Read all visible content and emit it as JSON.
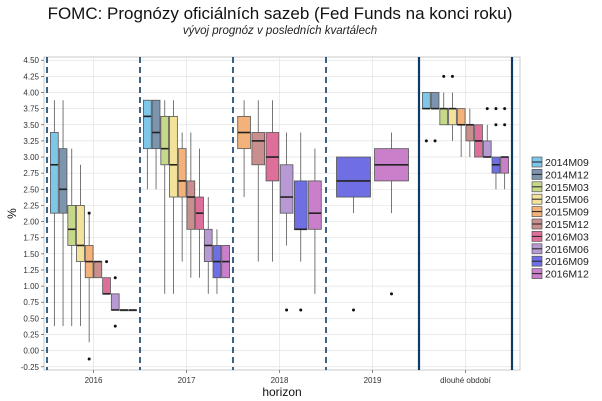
{
  "chart_data": {
    "type": "box",
    "title": "FOMC: Prognózy oficiálních sazeb (Fed Funds na konci roku)",
    "subtitle": "vývoj prognóz v posledních kvartálech",
    "xlabel": "horizon",
    "ylabel": "%",
    "ylim": [
      -0.3,
      4.55
    ],
    "yticks": [
      "-0.25",
      "0.00",
      "0.25",
      "0.50",
      "0.75",
      "1.00",
      "1.25",
      "1.50",
      "1.75",
      "2.00",
      "2.25",
      "2.50",
      "2.75",
      "3.00",
      "3.25",
      "3.50",
      "3.75",
      "4.00",
      "4.25",
      "4.50"
    ],
    "categories": [
      "2016",
      "2017",
      "2018",
      "2019",
      "dlouhé období"
    ],
    "series": [
      {
        "name": "2014M09",
        "color": "#7fc7e8"
      },
      {
        "name": "2014M12",
        "color": "#7d94ae"
      },
      {
        "name": "2015M03",
        "color": "#c6d98b"
      },
      {
        "name": "2015M06",
        "color": "#f3e39a"
      },
      {
        "name": "2015M09",
        "color": "#f3b27a"
      },
      {
        "name": "2015M12",
        "color": "#c98f8f"
      },
      {
        "name": "2016M03",
        "color": "#de6f9a"
      },
      {
        "name": "2016M06",
        "color": "#b79ad3"
      },
      {
        "name": "2016M09",
        "color": "#6f6fe3"
      },
      {
        "name": "2016M12",
        "color": "#c97fc9"
      }
    ],
    "boxes": [
      {
        "category": "2016",
        "series": "2014M09",
        "min": 0.38,
        "q1": 2.13,
        "median": 2.88,
        "q3": 3.38,
        "max": 3.88,
        "outliers": []
      },
      {
        "category": "2016",
        "series": "2014M12",
        "min": 0.38,
        "q1": 2.13,
        "median": 2.5,
        "q3": 3.13,
        "max": 3.88,
        "outliers": []
      },
      {
        "category": "2016",
        "series": "2015M03",
        "min": 0.38,
        "q1": 1.63,
        "median": 1.88,
        "q3": 2.25,
        "max": 3.13,
        "outliers": []
      },
      {
        "category": "2016",
        "series": "2015M06",
        "min": 0.38,
        "q1": 1.38,
        "median": 1.63,
        "q3": 2.25,
        "max": 2.88,
        "outliers": []
      },
      {
        "category": "2016",
        "series": "2015M09",
        "min": 0.13,
        "q1": 1.13,
        "median": 1.38,
        "q3": 1.63,
        "max": 2.13,
        "outliers": [
          -0.13,
          2.13
        ]
      },
      {
        "category": "2016",
        "series": "2015M12",
        "min": 1.13,
        "q1": 1.13,
        "median": 1.38,
        "q3": 1.38,
        "max": 1.38,
        "outliers": []
      },
      {
        "category": "2016",
        "series": "2016M03",
        "min": 0.88,
        "q1": 0.88,
        "median": 0.88,
        "q3": 1.13,
        "max": 1.13,
        "outliers": [
          1.38
        ]
      },
      {
        "category": "2016",
        "series": "2016M06",
        "min": 0.63,
        "q1": 0.63,
        "median": 0.63,
        "q3": 0.88,
        "max": 0.88,
        "outliers": [
          1.13,
          0.38
        ]
      },
      {
        "category": "2016",
        "series": "2016M09",
        "min": 0.63,
        "q1": 0.63,
        "median": 0.63,
        "q3": 0.63,
        "max": 0.63,
        "outliers": []
      },
      {
        "category": "2016",
        "series": "2016M12",
        "min": 0.63,
        "q1": 0.63,
        "median": 0.63,
        "q3": 0.63,
        "max": 0.63,
        "outliers": []
      },
      {
        "category": "2017",
        "series": "2014M09",
        "min": 2.5,
        "q1": 3.13,
        "median": 3.63,
        "q3": 3.88,
        "max": 3.88,
        "outliers": []
      },
      {
        "category": "2017",
        "series": "2014M12",
        "min": 2.5,
        "q1": 3.13,
        "median": 3.38,
        "q3": 3.88,
        "max": 3.88,
        "outliers": []
      },
      {
        "category": "2017",
        "series": "2015M03",
        "min": 0.88,
        "q1": 2.88,
        "median": 3.13,
        "q3": 3.63,
        "max": 3.88,
        "outliers": []
      },
      {
        "category": "2017",
        "series": "2015M06",
        "min": 0.88,
        "q1": 2.38,
        "median": 2.88,
        "q3": 3.63,
        "max": 3.88,
        "outliers": []
      },
      {
        "category": "2017",
        "series": "2015M09",
        "min": 1.38,
        "q1": 2.38,
        "median": 2.63,
        "q3": 3.13,
        "max": 3.38,
        "outliers": []
      },
      {
        "category": "2017",
        "series": "2015M12",
        "min": 1.13,
        "q1": 1.88,
        "median": 2.38,
        "q3": 2.63,
        "max": 3.38,
        "outliers": []
      },
      {
        "category": "2017",
        "series": "2016M03",
        "min": 1.13,
        "q1": 1.88,
        "median": 2.13,
        "q3": 2.38,
        "max": 3.13,
        "outliers": []
      },
      {
        "category": "2017",
        "series": "2016M06",
        "min": 0.88,
        "q1": 1.38,
        "median": 1.63,
        "q3": 1.88,
        "max": 2.38,
        "outliers": []
      },
      {
        "category": "2017",
        "series": "2016M09",
        "min": 0.88,
        "q1": 1.13,
        "median": 1.38,
        "q3": 1.63,
        "max": 1.88,
        "outliers": []
      },
      {
        "category": "2017",
        "series": "2016M12",
        "min": 1.13,
        "q1": 1.13,
        "median": 1.38,
        "q3": 1.63,
        "max": 1.63,
        "outliers": []
      },
      {
        "category": "2018",
        "series": "2015M09",
        "min": 2.38,
        "q1": 3.13,
        "median": 3.38,
        "q3": 3.63,
        "max": 3.88,
        "outliers": []
      },
      {
        "category": "2018",
        "series": "2015M12",
        "min": 1.38,
        "q1": 2.88,
        "median": 3.25,
        "q3": 3.38,
        "max": 3.88,
        "outliers": []
      },
      {
        "category": "2018",
        "series": "2016M03",
        "min": 1.38,
        "q1": 2.63,
        "median": 3.0,
        "q3": 3.38,
        "max": 3.88,
        "outliers": []
      },
      {
        "category": "2018",
        "series": "2016M06",
        "min": 1.63,
        "q1": 2.13,
        "median": 2.38,
        "q3": 2.88,
        "max": 3.38,
        "outliers": [
          0.63
        ]
      },
      {
        "category": "2018",
        "series": "2016M09",
        "min": 1.38,
        "q1": 1.88,
        "median": 1.88,
        "q3": 2.63,
        "max": 3.38,
        "outliers": [
          0.63
        ]
      },
      {
        "category": "2018",
        "series": "2016M12",
        "min": 0.88,
        "q1": 1.88,
        "median": 2.13,
        "q3": 2.63,
        "max": 3.13,
        "outliers": []
      },
      {
        "category": "2019",
        "series": "2016M09",
        "min": 2.13,
        "q1": 2.38,
        "median": 2.63,
        "q3": 3.0,
        "max": 3.0,
        "outliers": [
          0.63
        ]
      },
      {
        "category": "2019",
        "series": "2016M12",
        "min": 2.13,
        "q1": 2.63,
        "median": 2.88,
        "q3": 3.13,
        "max": 3.38,
        "outliers": [
          0.88
        ]
      },
      {
        "category": "dlouhé období",
        "series": "2014M09",
        "min": 3.75,
        "q1": 3.75,
        "median": 3.75,
        "q3": 4.0,
        "max": 4.0,
        "outliers": [
          3.25
        ]
      },
      {
        "category": "dlouhé období",
        "series": "2014M12",
        "min": 3.75,
        "q1": 3.75,
        "median": 3.75,
        "q3": 4.0,
        "max": 4.0,
        "outliers": [
          3.25
        ]
      },
      {
        "category": "dlouhé období",
        "series": "2015M03",
        "min": 3.5,
        "q1": 3.5,
        "median": 3.75,
        "q3": 3.75,
        "max": 4.0,
        "outliers": [
          4.25
        ]
      },
      {
        "category": "dlouhé období",
        "series": "2015M06",
        "min": 3.25,
        "q1": 3.5,
        "median": 3.75,
        "q3": 3.75,
        "max": 4.0,
        "outliers": [
          4.25
        ]
      },
      {
        "category": "dlouhé období",
        "series": "2015M09",
        "min": 3.0,
        "q1": 3.5,
        "median": 3.5,
        "q3": 3.75,
        "max": 3.75,
        "outliers": []
      },
      {
        "category": "dlouhé období",
        "series": "2015M12",
        "min": 3.0,
        "q1": 3.25,
        "median": 3.5,
        "q3": 3.5,
        "max": 3.75,
        "outliers": []
      },
      {
        "category": "dlouhé období",
        "series": "2016M03",
        "min": 3.0,
        "q1": 3.0,
        "median": 3.25,
        "q3": 3.5,
        "max": 3.5,
        "outliers": []
      },
      {
        "category": "dlouhé období",
        "series": "2016M06",
        "min": 3.0,
        "q1": 3.0,
        "median": 3.0,
        "q3": 3.25,
        "max": 3.5,
        "outliers": [
          3.75
        ]
      },
      {
        "category": "dlouhé období",
        "series": "2016M09",
        "min": 2.5,
        "q1": 2.75,
        "median": 2.88,
        "q3": 3.0,
        "max": 3.0,
        "outliers": [
          3.5,
          3.75
        ]
      },
      {
        "category": "dlouhé období",
        "series": "2016M12",
        "min": 2.5,
        "q1": 2.75,
        "median": 3.0,
        "q3": 3.0,
        "max": 3.0,
        "outliers": [
          3.5,
          3.75
        ]
      }
    ],
    "grid": true,
    "legend_position": "right"
  }
}
